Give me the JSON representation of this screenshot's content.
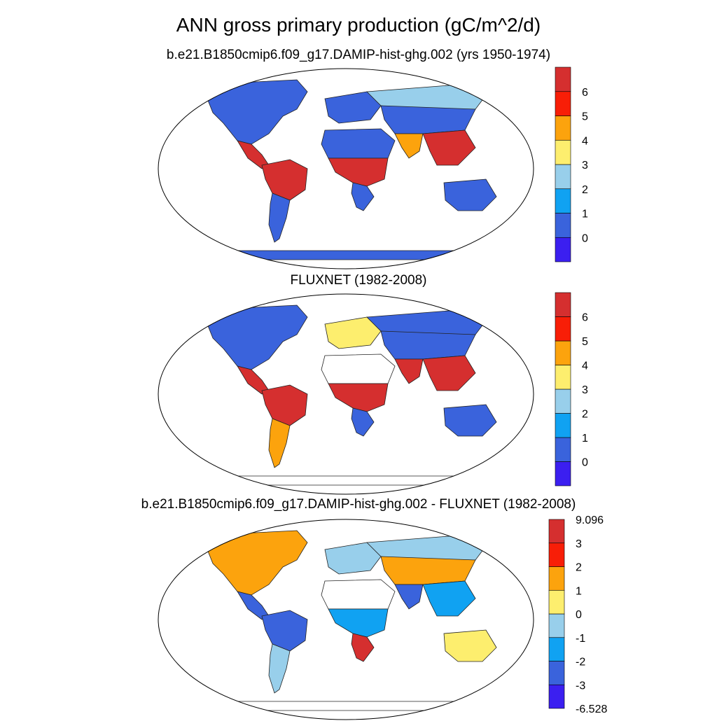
{
  "title": "ANN gross primary production (gC/m^2/d)",
  "panels": [
    {
      "id": "model",
      "subtitle": "b.e21.B1850cmip6.f09_g17.DAMIP-hist-ghg.002 (yrs 1950-1974)",
      "antarctica_value": "0",
      "colorbar": {
        "colors": [
          "#3b1ff0",
          "#3a63dc",
          "#10a2f2",
          "#98cfeb",
          "#fdee6e",
          "#fca30d",
          "#f81e07",
          "#d52f2f"
        ],
        "labels": [
          "0",
          "1",
          "2",
          "3",
          "4",
          "5",
          "6"
        ]
      }
    },
    {
      "id": "obs",
      "subtitle": "FLUXNET (1982-2008)",
      "antarctica_value": "missing",
      "colorbar": {
        "colors": [
          "#3b1ff0",
          "#3a63dc",
          "#10a2f2",
          "#98cfeb",
          "#fdee6e",
          "#fca30d",
          "#f81e07",
          "#d52f2f"
        ],
        "labels": [
          "0",
          "1",
          "2",
          "3",
          "4",
          "5",
          "6"
        ]
      }
    },
    {
      "id": "diff",
      "subtitle": "b.e21.B1850cmip6.f09_g17.DAMIP-hist-ghg.002 - FLUXNET (1982-2008)",
      "antarctica_value": "missing",
      "colorbar": {
        "colors": [
          "#3b1ff0",
          "#3a63dc",
          "#10a2f2",
          "#98cfeb",
          "#fdee6e",
          "#fca30d",
          "#f81e07",
          "#d52f2f"
        ],
        "labels": [
          "-6.528",
          "-3",
          "-2",
          "-1",
          "0",
          "1",
          "2",
          "3",
          "9.096"
        ]
      }
    }
  ],
  "regions": {
    "model": {
      "north_america": "#3a63dc",
      "central_america": "#d52f2f",
      "amazon": "#d52f2f",
      "south_america_south": "#3a63dc",
      "sahara": "#3a63dc",
      "central_africa": "#d52f2f",
      "southern_africa": "#3a63dc",
      "europe": "#3a63dc",
      "siberia": "#98cfeb",
      "asia_interior": "#3a63dc",
      "south_asia": "#fca30d",
      "southeast_asia": "#d52f2f",
      "australia": "#3a63dc",
      "antarctica": "#3a63dc"
    },
    "obs": {
      "north_america": "#3a63dc",
      "central_america": "#d52f2f",
      "amazon": "#d52f2f",
      "south_america_south": "#fca30d",
      "sahara": "#ffffff",
      "central_africa": "#d52f2f",
      "southern_africa": "#3a63dc",
      "europe": "#fdee6e",
      "siberia": "#3a63dc",
      "asia_interior": "#3a63dc",
      "south_asia": "#d52f2f",
      "southeast_asia": "#d52f2f",
      "australia": "#3a63dc",
      "antarctica": "#ffffff"
    },
    "diff": {
      "north_america": "#fca30d",
      "central_america": "#3a63dc",
      "amazon": "#3a63dc",
      "south_america_south": "#98cfeb",
      "sahara": "#ffffff",
      "central_africa": "#10a2f2",
      "southern_africa": "#d52f2f",
      "europe": "#98cfeb",
      "siberia": "#98cfeb",
      "asia_interior": "#fca30d",
      "south_asia": "#3a63dc",
      "southeast_asia": "#10a2f2",
      "australia": "#fdee6e",
      "antarctica": "#ffffff"
    }
  }
}
